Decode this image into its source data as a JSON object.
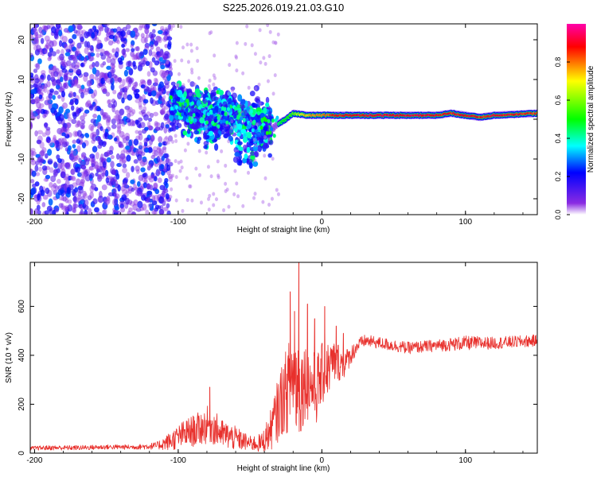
{
  "chart_data": [
    {
      "type": "heatmap",
      "title": "S225.2026.019.21.03.G10",
      "xlabel": "Height of straight line (km)",
      "ylabel": "Frequency (Hz)",
      "xlim": [
        -203,
        150
      ],
      "ylim": [
        -24,
        24
      ],
      "x_ticks": [
        -200,
        -100,
        0,
        100
      ],
      "x_tick_labels": [
        "-200",
        "-100",
        "0",
        "100"
      ],
      "y_ticks": [
        -20,
        -10,
        0,
        10,
        20
      ],
      "y_tick_labels": [
        "-20",
        "-10",
        "0",
        "10",
        "20"
      ],
      "colorbar": {
        "label": "Normalized spectral amplitude",
        "range": [
          0,
          1
        ],
        "ticks": [
          0.0,
          0.2,
          0.4,
          0.6,
          0.8
        ],
        "tick_labels": [
          "0.0",
          "0.2",
          "0.4",
          "0.6",
          "0.8"
        ],
        "stops": [
          "#ffffff",
          "#8a2be2",
          "#0000ff",
          "#00ffff",
          "#00ff00",
          "#ffff00",
          "#ff0000",
          "#ff00aa"
        ]
      },
      "ridge": {
        "description": "dominant frequency track",
        "x": [
          -105,
          -90,
          -75,
          -60,
          -50,
          -40,
          -35,
          -30,
          -25,
          -20,
          -10,
          0,
          10,
          20,
          40,
          60,
          80,
          90,
          100,
          110,
          120,
          150
        ],
        "freq": [
          3,
          2,
          1,
          1.5,
          0,
          -1.5,
          -2.5,
          -1,
          0,
          1.5,
          1,
          1,
          1,
          1,
          1,
          1,
          1,
          1.5,
          1,
          0.5,
          1,
          1.5
        ],
        "amplitude": [
          0.4,
          0.35,
          0.35,
          0.35,
          0.3,
          0.4,
          0.4,
          0.45,
          0.5,
          0.55,
          0.75,
          0.8,
          0.85,
          0.9,
          0.9,
          0.9,
          0.9,
          0.85,
          0.9,
          0.85,
          0.9,
          0.85
        ]
      },
      "noise_regions": [
        {
          "x_range": [
            -203,
            -105
          ],
          "freq_range": [
            -24,
            24
          ],
          "amplitude_range": [
            0.05,
            0.25
          ]
        },
        {
          "x_range": [
            -105,
            -35
          ],
          "freq_range": [
            -12,
            10
          ],
          "amplitude_range": [
            0.15,
            0.4
          ]
        }
      ]
    },
    {
      "type": "line",
      "title": "",
      "xlabel": "Height of straight line (km)",
      "ylabel": "SNR (10 * v/v)",
      "xlim": [
        -203,
        150
      ],
      "ylim": [
        0,
        780
      ],
      "x_ticks": [
        -200,
        -100,
        0,
        100
      ],
      "x_tick_labels": [
        "-200",
        "-100",
        "0",
        "100"
      ],
      "y_ticks": [
        0,
        200,
        400,
        600
      ],
      "y_tick_labels": [
        "0",
        "200",
        "400",
        "600"
      ],
      "series": [
        {
          "name": "SNR",
          "color": "#e8302c",
          "x": [
            -203,
            -190,
            -170,
            -150,
            -130,
            -115,
            -105,
            -95,
            -85,
            -78,
            -70,
            -60,
            -50,
            -42,
            -36,
            -32,
            -28,
            -24,
            -20,
            -18,
            -15,
            -12,
            -8,
            -4,
            0,
            5,
            10,
            15,
            20,
            25,
            30,
            40,
            60,
            80,
            100,
            120,
            150
          ],
          "y": [
            20,
            22,
            22,
            25,
            25,
            30,
            50,
            80,
            100,
            120,
            80,
            60,
            40,
            40,
            90,
            150,
            220,
            260,
            330,
            300,
            260,
            300,
            280,
            260,
            320,
            350,
            380,
            360,
            400,
            440,
            460,
            450,
            430,
            440,
            450,
            450,
            460
          ],
          "noise_amplitude": [
            8,
            10,
            10,
            10,
            10,
            15,
            40,
            60,
            70,
            80,
            60,
            50,
            30,
            40,
            80,
            120,
            150,
            180,
            200,
            250,
            200,
            160,
            150,
            150,
            130,
            110,
            90,
            60,
            40,
            30,
            25,
            25,
            25,
            25,
            30,
            25,
            25
          ],
          "spikes": [
            {
              "x": -78,
              "y": 270
            },
            {
              "x": -22,
              "y": 660
            },
            {
              "x": -19,
              "y": 580
            },
            {
              "x": -16,
              "y": 780
            },
            {
              "x": -10,
              "y": 610
            },
            {
              "x": -5,
              "y": 550
            },
            {
              "x": 2,
              "y": 600
            },
            {
              "x": 10,
              "y": 520
            },
            {
              "x": 15,
              "y": 490
            }
          ]
        }
      ]
    }
  ]
}
